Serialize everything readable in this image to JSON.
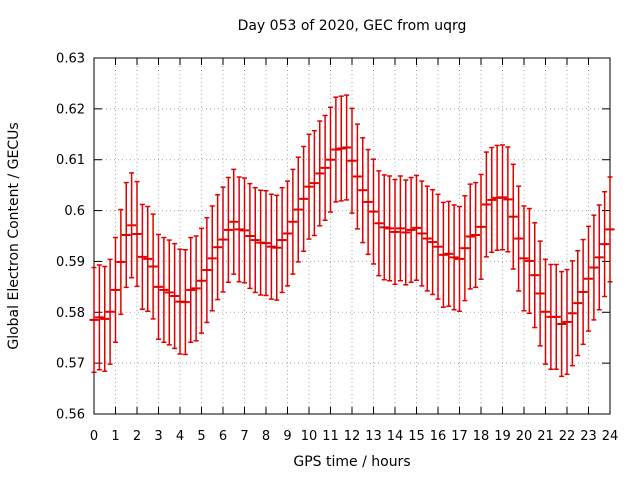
{
  "chart_data": {
    "type": "scatter",
    "subtype": "yerrorbars",
    "title": "Day 053 of 2020, GEC from uqrg",
    "xlabel": "GPS time / hours",
    "ylabel": "Global Electron Content / GECUs",
    "xlim": [
      0,
      24
    ],
    "ylim": [
      0.56,
      0.63
    ],
    "xticks": [
      0,
      1,
      2,
      3,
      4,
      5,
      6,
      7,
      8,
      9,
      10,
      11,
      12,
      13,
      14,
      15,
      16,
      17,
      18,
      19,
      20,
      21,
      22,
      23,
      24
    ],
    "x_ticklabels": [
      "0",
      "1",
      "2",
      "3",
      "4",
      "5",
      "6",
      "7",
      "8",
      "9",
      "10",
      "11",
      "12",
      "13",
      "14",
      "15",
      "16",
      "17",
      "18",
      "19",
      "20",
      "21",
      "22",
      "23",
      "24"
    ],
    "yticks": [
      0.56,
      0.57,
      0.58,
      0.59,
      0.6,
      0.61,
      0.62,
      0.63
    ],
    "y_ticklabels": [
      "0.56",
      "0.57",
      "0.58",
      "0.59",
      "0.6",
      "0.61",
      "0.62",
      "0.63"
    ],
    "grid": true,
    "legend": null,
    "x_step_hours": 0.25,
    "x": [
      0,
      0.25,
      0.5,
      0.75,
      1,
      1.25,
      1.5,
      1.75,
      2,
      2.25,
      2.5,
      2.75,
      3,
      3.25,
      3.5,
      3.75,
      4,
      4.25,
      4.5,
      4.75,
      5,
      5.25,
      5.5,
      5.75,
      6,
      6.25,
      6.5,
      6.75,
      7,
      7.25,
      7.5,
      7.75,
      8,
      8.25,
      8.5,
      8.75,
      9,
      9.25,
      9.5,
      9.75,
      10,
      10.25,
      10.5,
      10.75,
      11,
      11.25,
      11.5,
      11.75,
      12,
      12.25,
      12.5,
      12.75,
      13,
      13.25,
      13.5,
      13.75,
      14,
      14.25,
      14.5,
      14.75,
      15,
      15.25,
      15.5,
      15.75,
      16,
      16.25,
      16.5,
      16.75,
      17,
      17.25,
      17.5,
      17.75,
      18,
      18.25,
      18.5,
      18.75,
      19,
      19.25,
      19.5,
      19.75,
      20,
      20.25,
      20.5,
      20.75,
      21,
      21.25,
      21.5,
      21.75,
      22,
      22.25,
      22.5,
      22.75,
      23,
      23.25,
      23.5,
      23.75,
      24
    ],
    "y": [
      0.5785,
      0.579,
      0.5787,
      0.5801,
      0.5844,
      0.5899,
      0.5952,
      0.5971,
      0.5954,
      0.5909,
      0.5905,
      0.589,
      0.585,
      0.5844,
      0.5839,
      0.5832,
      0.5821,
      0.582,
      0.5844,
      0.5847,
      0.5862,
      0.5883,
      0.5906,
      0.5928,
      0.5943,
      0.5962,
      0.5978,
      0.5963,
      0.5961,
      0.595,
      0.5942,
      0.5937,
      0.5936,
      0.5929,
      0.5927,
      0.5942,
      0.5955,
      0.5978,
      0.6002,
      0.6023,
      0.6047,
      0.6054,
      0.6073,
      0.6084,
      0.61,
      0.612,
      0.6122,
      0.6124,
      0.6098,
      0.6067,
      0.604,
      0.6017,
      0.5998,
      0.5975,
      0.5967,
      0.5965,
      0.5958,
      0.5965,
      0.5957,
      0.5962,
      0.5966,
      0.5955,
      0.5945,
      0.5938,
      0.5929,
      0.5913,
      0.5915,
      0.5908,
      0.5905,
      0.5926,
      0.5949,
      0.5952,
      0.5968,
      0.6012,
      0.6021,
      0.6025,
      0.6026,
      0.6022,
      0.5988,
      0.5945,
      0.5906,
      0.5901,
      0.5873,
      0.5837,
      0.5801,
      0.5791,
      0.5791,
      0.5777,
      0.5781,
      0.5798,
      0.5818,
      0.584,
      0.5866,
      0.5888,
      0.5908,
      0.5934,
      0.5963
    ],
    "yerr": 0.0103,
    "colors": {
      "bars": "#e00000",
      "grid": "#a8a8a8",
      "axis": "#000000",
      "background": "#ffffff"
    }
  }
}
